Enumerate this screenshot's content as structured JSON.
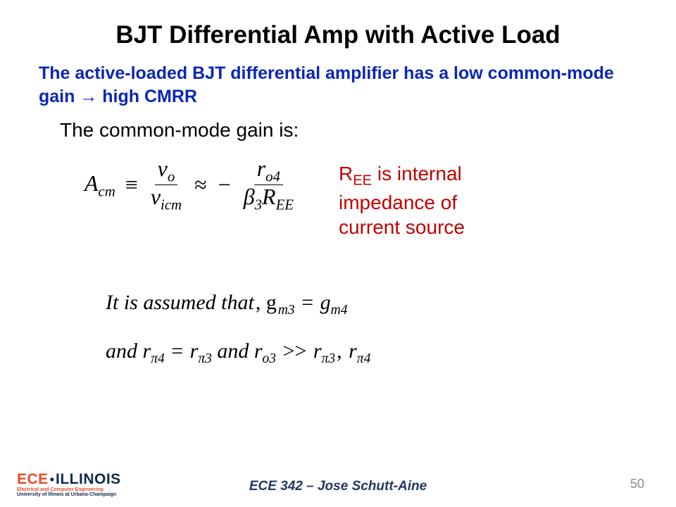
{
  "title": "BJT Differential Amp with Active Load",
  "subtitle_pre": "The active-loaded BJT differential amplifier has a low common-mode gain ",
  "subtitle_arrow": "→",
  "subtitle_post": " high CMRR",
  "body": "The common-mode gain is:",
  "eq": {
    "lhs_sym": "A",
    "lhs_sub": "cm",
    "equiv": "≡",
    "f1_num_sym": "v",
    "f1_num_sub": "o",
    "f1_den_sym": "v",
    "f1_den_sub": "icm",
    "approx": "≈",
    "minus": "−",
    "f2_num_sym": "r",
    "f2_num_sub": "o4",
    "f2_den_b": "β",
    "f2_den_bsub": "3",
    "f2_den_R": "R",
    "f2_den_Rsub": "EE"
  },
  "note_r": "R",
  "note_sub": "EE",
  "note_rest": " is internal impedance of current source",
  "assume1_a": "It is assumed that",
  "assume1_b": ",  g",
  "assume1_sub1": "m3",
  "assume1_eq": " = ",
  "assume1_c": "g",
  "assume1_sub2": "m4",
  "assume2_and1": "and  r",
  "assume2_s1": "π4",
  "assume2_eq1": " = ",
  "assume2_r2": "r",
  "assume2_s2": "π3",
  "assume2_and2": "   and  r",
  "assume2_s3": "o3",
  "assume2_gg": " >> ",
  "assume2_r4": "r",
  "assume2_s4": "π3",
  "assume2_comma": ", ",
  "assume2_r5": "r",
  "assume2_s5": "π4",
  "footer_text": "ECE 342 – Jose Schutt-Aine",
  "page_number": "50",
  "logo": {
    "ece": "ECE",
    "dot": "•",
    "illinois": "ILLINOIS",
    "line1": "Electrical and Computer Engineering",
    "line2": "University of Illinois at Urbana-Champaign"
  },
  "colors": {
    "title": "#000000",
    "subtitle": "#0b27b3",
    "note": "#c00000",
    "footer": "#203864",
    "logo_orange": "#e84a27",
    "logo_navy": "#13294b",
    "pagenum": "#8a8a8a",
    "background": "#ffffff"
  }
}
